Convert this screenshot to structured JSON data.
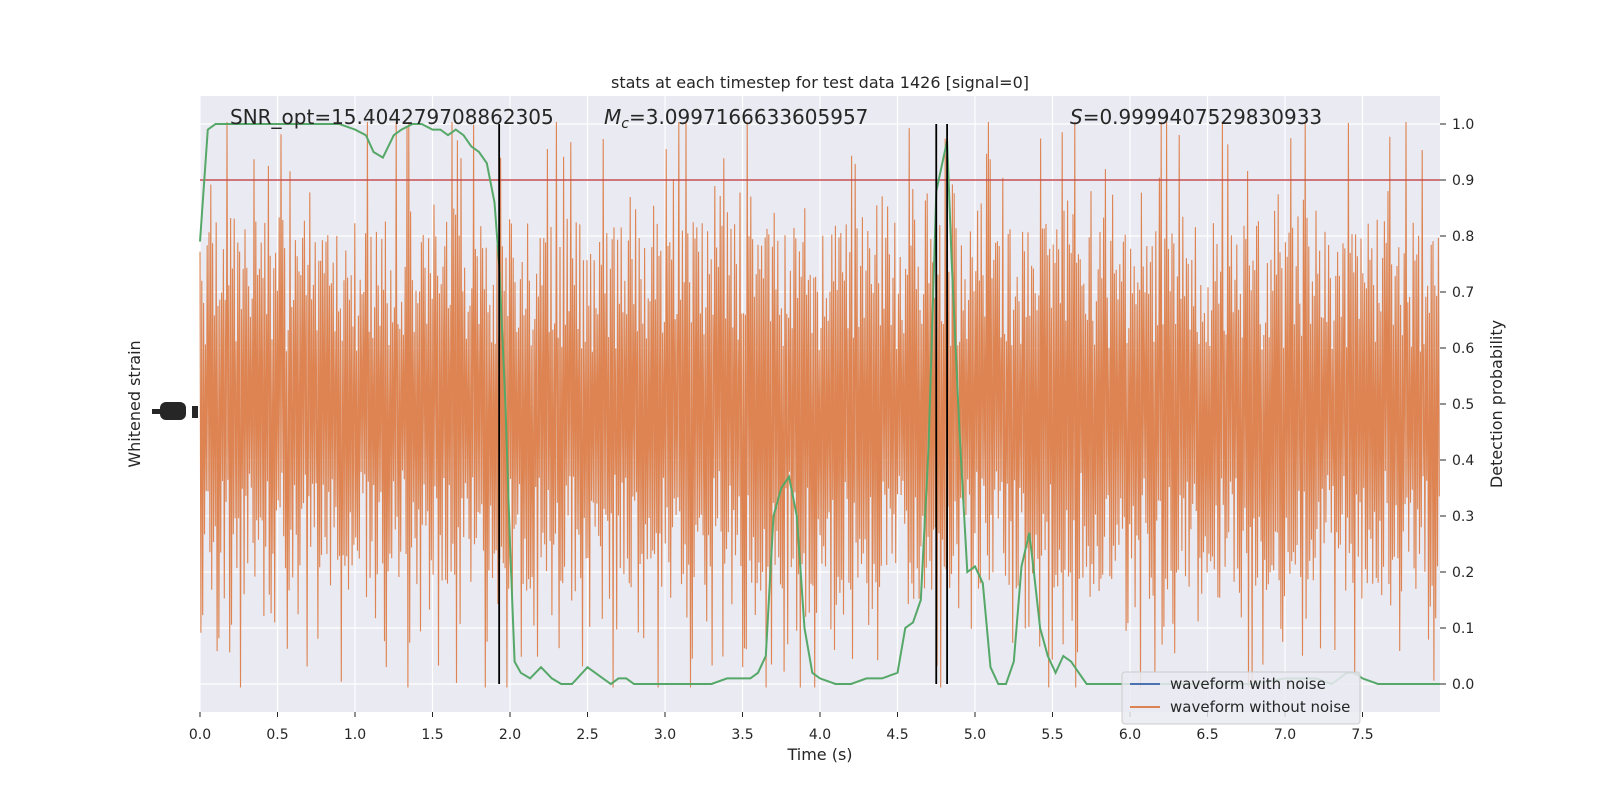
{
  "chart_data": {
    "type": "line",
    "title": "stats at each timestep for test data 1426 [signal=0]",
    "xlabel": "Time (s)",
    "ylabel_left": "Whitened strain",
    "ylabel_right": "Detection probability",
    "xlim": [
      0,
      8
    ],
    "ylim_right": [
      -0.05,
      1.05
    ],
    "x_ticks": [
      "0.0",
      "0.5",
      "1.0",
      "1.5",
      "2.0",
      "2.5",
      "3.0",
      "3.5",
      "4.0",
      "4.5",
      "5.0",
      "5.5",
      "6.0",
      "6.5",
      "7.0",
      "7.5"
    ],
    "x_tick_values": [
      0,
      0.5,
      1,
      1.5,
      2,
      2.5,
      3,
      3.5,
      4,
      4.5,
      5,
      5.5,
      6,
      6.5,
      7,
      7.5
    ],
    "y_ticks_right": [
      "0.0",
      "0.1",
      "0.2",
      "0.3",
      "0.4",
      "0.5",
      "0.6",
      "0.7",
      "0.8",
      "0.9",
      "1.0"
    ],
    "y_tick_values_right": [
      0,
      0.1,
      0.2,
      0.3,
      0.4,
      0.5,
      0.6,
      0.7,
      0.8,
      0.9,
      1.0
    ],
    "grid": true,
    "threshold": 0.9,
    "vlines": [
      1.93,
      4.75,
      4.82
    ],
    "annotations": {
      "snr": "SNR_opt=15.404279708862305",
      "mc_symbol": "M",
      "mc_sub": "c",
      "mc_value": "=3.0997166633605957",
      "s_symbol": "S",
      "s_value": "=0.9999407529830933"
    },
    "series": [
      {
        "name": "waveform with noise",
        "color": "#4c72b0"
      },
      {
        "name": "waveform without noise",
        "color": "#dd8452"
      }
    ],
    "detection": {
      "color": "#55a868",
      "x": [
        0,
        0.05,
        0.1,
        0.15,
        0.2,
        0.3,
        0.4,
        0.5,
        0.6,
        0.7,
        0.8,
        0.9,
        1.0,
        1.07,
        1.12,
        1.18,
        1.25,
        1.3,
        1.37,
        1.43,
        1.5,
        1.55,
        1.6,
        1.65,
        1.7,
        1.75,
        1.8,
        1.85,
        1.9,
        1.93,
        1.97,
        2.0,
        2.03,
        2.07,
        2.13,
        2.2,
        2.27,
        2.33,
        2.4,
        2.5,
        2.6,
        2.65,
        2.7,
        2.75,
        2.8,
        2.9,
        3.0,
        3.1,
        3.2,
        3.3,
        3.4,
        3.5,
        3.55,
        3.6,
        3.65,
        3.7,
        3.75,
        3.8,
        3.85,
        3.9,
        3.95,
        4.0,
        4.1,
        4.2,
        4.3,
        4.35,
        4.4,
        4.5,
        4.55,
        4.6,
        4.65,
        4.7,
        4.75,
        4.82,
        4.85,
        4.9,
        4.95,
        5.0,
        5.05,
        5.1,
        5.15,
        5.2,
        5.25,
        5.3,
        5.35,
        5.38,
        5.42,
        5.47,
        5.52,
        5.57,
        5.62,
        5.67,
        5.72,
        5.8,
        5.9,
        6.0,
        6.2,
        6.5,
        6.8,
        7.0,
        7.2,
        7.3,
        7.35,
        7.4,
        7.45,
        7.5,
        7.6,
        7.8,
        8.0
      ],
      "y": [
        0.79,
        0.99,
        1.0,
        1.0,
        1.0,
        1.0,
        1.0,
        1.0,
        1.0,
        1.0,
        1.0,
        1.0,
        0.99,
        0.98,
        0.95,
        0.94,
        0.98,
        0.99,
        1.0,
        1.0,
        0.99,
        0.99,
        0.98,
        0.99,
        0.98,
        0.96,
        0.95,
        0.93,
        0.86,
        0.75,
        0.5,
        0.25,
        0.04,
        0.02,
        0.01,
        0.03,
        0.01,
        0.0,
        0.0,
        0.03,
        0.01,
        0.0,
        0.01,
        0.01,
        0.0,
        0.0,
        0.0,
        0.0,
        0.0,
        0.0,
        0.01,
        0.01,
        0.01,
        0.02,
        0.05,
        0.3,
        0.35,
        0.37,
        0.3,
        0.1,
        0.02,
        0.01,
        0.0,
        0.0,
        0.01,
        0.01,
        0.01,
        0.02,
        0.1,
        0.11,
        0.15,
        0.42,
        0.88,
        0.97,
        0.75,
        0.45,
        0.2,
        0.21,
        0.18,
        0.03,
        0.0,
        0.0,
        0.04,
        0.21,
        0.27,
        0.2,
        0.1,
        0.05,
        0.02,
        0.05,
        0.04,
        0.02,
        0.0,
        0.0,
        0.0,
        0.0,
        0.0,
        0.0,
        0.0,
        0.01,
        0.01,
        0.0,
        0.01,
        0.02,
        0.02,
        0.01,
        0.0,
        0.0,
        0.0
      ]
    }
  }
}
